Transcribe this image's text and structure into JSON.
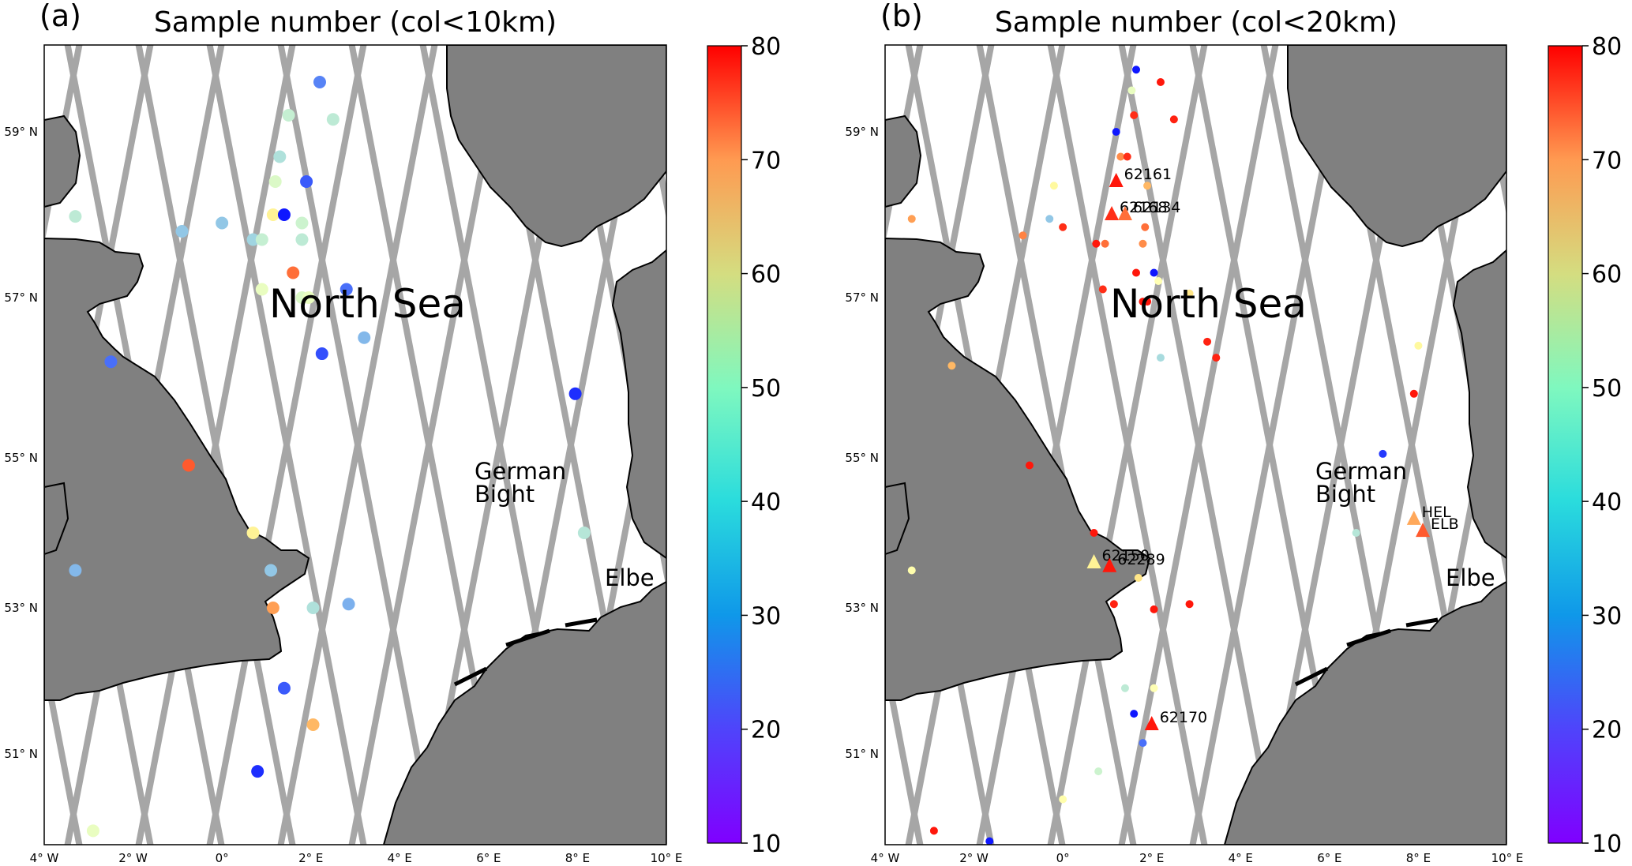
{
  "figure": {
    "panels": [
      {
        "letter": "(a)",
        "title": "Sample number (col<10km)",
        "sea_label": "North Sea",
        "bight_label_1": "German",
        "bight_label_2": "Bight",
        "river_label": "Elbe",
        "x_ticks": [
          "4° W",
          "2° W",
          "0°",
          "2° E",
          "4° E",
          "6° E",
          "8° E",
          "10° E"
        ],
        "y_ticks": [
          "59° N",
          "57° N",
          "55° N",
          "53° N",
          "51° N"
        ],
        "colorbar_ticks": [
          "80",
          "70",
          "60",
          "50",
          "40",
          "30",
          "20",
          "10"
        ]
      },
      {
        "letter": "(b)",
        "title": "Sample number (col<20km)",
        "sea_label": "North Sea",
        "bight_label_1": "German",
        "bight_label_2": "Bight",
        "river_label": "Elbe",
        "x_ticks": [
          "4° W",
          "2° W",
          "0°",
          "2° E",
          "4° E",
          "6° E",
          "8° E",
          "10° E"
        ],
        "y_ticks": [
          "59° N",
          "57° N",
          "55° N",
          "53° N",
          "51° N"
        ],
        "colorbar_ticks": [
          "80",
          "70",
          "60",
          "50",
          "40",
          "30",
          "20",
          "10"
        ],
        "stations": [
          {
            "id": "62161",
            "lon": 1.2,
            "lat": 58.4,
            "n": 78
          },
          {
            "id": "62168",
            "lon": 1.1,
            "lat": 58.0,
            "n": 76
          },
          {
            "id": "62134",
            "lon": 1.4,
            "lat": 58.0,
            "n": 70
          },
          {
            "id": "62150",
            "lon": 0.7,
            "lat": 53.6,
            "n": 52
          },
          {
            "id": "62289",
            "lon": 1.05,
            "lat": 53.55,
            "n": 78
          },
          {
            "id": "62170",
            "lon": 2.0,
            "lat": 51.4,
            "n": 78
          },
          {
            "id": "HEL",
            "lon": 7.9,
            "lat": 54.18,
            "n": 64
          },
          {
            "id": "ELB",
            "lon": 8.1,
            "lat": 54.02,
            "n": 72
          }
        ]
      }
    ]
  },
  "chart_data": [
    {
      "type": "scatter",
      "title": "Sample number (col<10km)",
      "xlim": [
        -4,
        10
      ],
      "ylim": [
        49.8,
        60.2
      ],
      "color_scale": {
        "min": 10,
        "max": 80,
        "colormap": "rainbow"
      },
      "points": [
        {
          "lon": 2.2,
          "lat": 59.6,
          "n": 22
        },
        {
          "lon": 1.5,
          "lat": 59.2,
          "n": 37
        },
        {
          "lon": 2.5,
          "lat": 59.15,
          "n": 36
        },
        {
          "lon": 1.3,
          "lat": 58.7,
          "n": 34
        },
        {
          "lon": 1.2,
          "lat": 58.4,
          "n": 40
        },
        {
          "lon": 1.9,
          "lat": 58.4,
          "n": 18
        },
        {
          "lon": -3.3,
          "lat": 57.98,
          "n": 36
        },
        {
          "lon": 1.15,
          "lat": 58.0,
          "n": 52
        },
        {
          "lon": 1.4,
          "lat": 58.0,
          "n": 12
        },
        {
          "lon": 0.0,
          "lat": 57.9,
          "n": 30
        },
        {
          "lon": 1.8,
          "lat": 57.9,
          "n": 38
        },
        {
          "lon": -0.9,
          "lat": 57.8,
          "n": 30
        },
        {
          "lon": 0.7,
          "lat": 57.7,
          "n": 32
        },
        {
          "lon": 0.9,
          "lat": 57.7,
          "n": 37
        },
        {
          "lon": 1.8,
          "lat": 57.7,
          "n": 36
        },
        {
          "lon": 1.6,
          "lat": 57.3,
          "n": 70
        },
        {
          "lon": 2.8,
          "lat": 57.1,
          "n": 20
        },
        {
          "lon": 0.9,
          "lat": 57.1,
          "n": 42
        },
        {
          "lon": 1.8,
          "lat": 57.0,
          "n": 40
        },
        {
          "lon": 1.95,
          "lat": 57.0,
          "n": 42
        },
        {
          "lon": 3.2,
          "lat": 56.5,
          "n": 28
        },
        {
          "lon": 2.25,
          "lat": 56.3,
          "n": 17
        },
        {
          "lon": -2.5,
          "lat": 56.2,
          "n": 20
        },
        {
          "lon": 7.95,
          "lat": 55.8,
          "n": 14
        },
        {
          "lon": -0.75,
          "lat": 54.9,
          "n": 72
        },
        {
          "lon": 0.7,
          "lat": 54.0,
          "n": 52
        },
        {
          "lon": 8.15,
          "lat": 54.0,
          "n": 35
        },
        {
          "lon": -3.3,
          "lat": 53.5,
          "n": 28
        },
        {
          "lon": 1.1,
          "lat": 53.5,
          "n": 30
        },
        {
          "lon": 1.15,
          "lat": 53.0,
          "n": 65
        },
        {
          "lon": 2.05,
          "lat": 53.0,
          "n": 34
        },
        {
          "lon": 2.85,
          "lat": 53.05,
          "n": 27
        },
        {
          "lon": 1.4,
          "lat": 51.9,
          "n": 18
        },
        {
          "lon": 2.05,
          "lat": 51.4,
          "n": 62
        },
        {
          "lon": 0.8,
          "lat": 50.75,
          "n": 14
        },
        {
          "lon": -2.9,
          "lat": 49.9,
          "n": 42
        }
      ]
    },
    {
      "type": "scatter",
      "title": "Sample number (col<20km)",
      "xlim": [
        -4,
        10
      ],
      "ylim": [
        49.8,
        60.2
      ],
      "color_scale": {
        "min": 10,
        "max": 80,
        "colormap": "rainbow"
      },
      "points": [
        {
          "lon": 1.65,
          "lat": 59.75,
          "n": 12
        },
        {
          "lon": 2.2,
          "lat": 59.6,
          "n": 78
        },
        {
          "lon": 1.55,
          "lat": 59.5,
          "n": 42
        },
        {
          "lon": 1.6,
          "lat": 59.2,
          "n": 76
        },
        {
          "lon": 2.5,
          "lat": 59.15,
          "n": 77
        },
        {
          "lon": 1.2,
          "lat": 59.0,
          "n": 12
        },
        {
          "lon": 1.3,
          "lat": 58.7,
          "n": 67
        },
        {
          "lon": 1.45,
          "lat": 58.7,
          "n": 76
        },
        {
          "lon": -0.2,
          "lat": 58.35,
          "n": 50
        },
        {
          "lon": 1.9,
          "lat": 58.35,
          "n": 62
        },
        {
          "lon": -3.4,
          "lat": 57.95,
          "n": 65
        },
        {
          "lon": -0.3,
          "lat": 57.95,
          "n": 30
        },
        {
          "lon": 0.0,
          "lat": 57.85,
          "n": 76
        },
        {
          "lon": 1.85,
          "lat": 57.85,
          "n": 70
        },
        {
          "lon": -0.9,
          "lat": 57.75,
          "n": 68
        },
        {
          "lon": 0.75,
          "lat": 57.65,
          "n": 78
        },
        {
          "lon": 0.95,
          "lat": 57.65,
          "n": 70
        },
        {
          "lon": 1.8,
          "lat": 57.65,
          "n": 67
        },
        {
          "lon": 1.65,
          "lat": 57.3,
          "n": 78
        },
        {
          "lon": 2.05,
          "lat": 57.3,
          "n": 12
        },
        {
          "lon": 2.15,
          "lat": 57.2,
          "n": 45
        },
        {
          "lon": 0.9,
          "lat": 57.1,
          "n": 76
        },
        {
          "lon": 2.85,
          "lat": 57.05,
          "n": 55
        },
        {
          "lon": 1.8,
          "lat": 56.95,
          "n": 78
        },
        {
          "lon": 1.9,
          "lat": 56.95,
          "n": 78
        },
        {
          "lon": 3.25,
          "lat": 56.45,
          "n": 77
        },
        {
          "lon": 8.0,
          "lat": 56.4,
          "n": 50
        },
        {
          "lon": 3.45,
          "lat": 56.25,
          "n": 77
        },
        {
          "lon": 2.2,
          "lat": 56.25,
          "n": 33
        },
        {
          "lon": -2.5,
          "lat": 56.15,
          "n": 62
        },
        {
          "lon": 7.9,
          "lat": 55.8,
          "n": 78
        },
        {
          "lon": 7.2,
          "lat": 55.05,
          "n": 15
        },
        {
          "lon": -0.75,
          "lat": 54.9,
          "n": 78
        },
        {
          "lon": 0.7,
          "lat": 54.0,
          "n": 78
        },
        {
          "lon": 6.6,
          "lat": 54.0,
          "n": 35
        },
        {
          "lon": -3.4,
          "lat": 53.5,
          "n": 47
        },
        {
          "lon": 1.7,
          "lat": 53.4,
          "n": 55
        },
        {
          "lon": 1.15,
          "lat": 53.05,
          "n": 77
        },
        {
          "lon": 2.05,
          "lat": 52.98,
          "n": 78
        },
        {
          "lon": 2.85,
          "lat": 53.05,
          "n": 78
        },
        {
          "lon": 1.4,
          "lat": 51.9,
          "n": 36
        },
        {
          "lon": 2.05,
          "lat": 51.9,
          "n": 45
        },
        {
          "lon": 1.6,
          "lat": 51.55,
          "n": 12
        },
        {
          "lon": 1.8,
          "lat": 51.15,
          "n": 20
        },
        {
          "lon": 0.8,
          "lat": 50.75,
          "n": 38
        },
        {
          "lon": 0.0,
          "lat": 50.35,
          "n": 47
        },
        {
          "lon": -2.9,
          "lat": 49.9,
          "n": 78
        },
        {
          "lon": -1.65,
          "lat": 49.75,
          "n": 12
        }
      ]
    }
  ],
  "colors": {
    "land": "#808080",
    "sea": "#ffffff",
    "tracks": "#a6a6a6",
    "frame": "#000000"
  }
}
